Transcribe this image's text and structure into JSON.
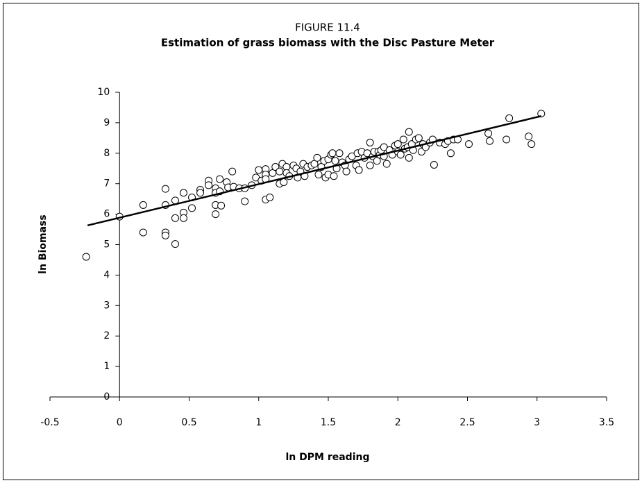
{
  "chart_data": {
    "type": "scatter",
    "title": "FIGURE 11.4",
    "subtitle": "Estimation of grass biomass with the Disc Pasture Meter",
    "x_label": "ln DPM reading",
    "y_label": "ln Biomass",
    "xlim": [
      -0.5,
      3.5
    ],
    "xticks": [
      -0.5,
      0,
      0.5,
      1,
      1.5,
      2,
      2.5,
      3,
      3.5
    ],
    "ylim": [
      0,
      10
    ],
    "yticks": [
      0,
      1,
      2,
      3,
      4,
      5,
      6,
      7,
      8,
      9,
      10
    ],
    "marker_color": "#000000",
    "line_color": "#000000",
    "x": [
      -0.24,
      0,
      0.17,
      0.17,
      0.33,
      0.33,
      0.33,
      0.33,
      0.4,
      0.4,
      0.4,
      0.46,
      0.46,
      0.46,
      0.52,
      0.52,
      0.58,
      0.58,
      0.64,
      0.64,
      0.69,
      0.69,
      0.69,
      0.69,
      0.72,
      0.72,
      0.73,
      0.77,
      0.78,
      0.81,
      0.82,
      0.86,
      0.9,
      0.9,
      0.95,
      0.98,
      1.0,
      1.02,
      1.05,
      1.05,
      1.05,
      1.05,
      1.08,
      1.1,
      1.12,
      1.15,
      1.15,
      1.17,
      1.18,
      1.2,
      1.2,
      1.22,
      1.25,
      1.27,
      1.28,
      1.3,
      1.32,
      1.33,
      1.35,
      1.38,
      1.4,
      1.42,
      1.43,
      1.45,
      1.47,
      1.48,
      1.5,
      1.5,
      1.52,
      1.53,
      1.54,
      1.55,
      1.56,
      1.58,
      1.6,
      1.62,
      1.63,
      1.65,
      1.67,
      1.7,
      1.71,
      1.72,
      1.74,
      1.76,
      1.78,
      1.8,
      1.8,
      1.82,
      1.83,
      1.85,
      1.86,
      1.87,
      1.88,
      1.9,
      1.9,
      1.92,
      1.94,
      1.96,
      1.98,
      2.0,
      2.0,
      2.02,
      2.04,
      2.05,
      2.07,
      2.08,
      2.08,
      2.1,
      2.11,
      2.13,
      2.15,
      2.17,
      2.18,
      2.2,
      2.23,
      2.25,
      2.26,
      2.3,
      2.34,
      2.36,
      2.38,
      2.4,
      2.43,
      2.51,
      2.65,
      2.66,
      2.78,
      2.8,
      2.94,
      2.96,
      3.03
    ],
    "y": [
      4.6,
      5.92,
      6.3,
      5.4,
      6.83,
      6.3,
      5.4,
      5.3,
      6.45,
      5.87,
      5.02,
      6.7,
      6.05,
      5.87,
      6.2,
      6.55,
      6.8,
      6.7,
      7.1,
      6.95,
      6.85,
      6.7,
      6.3,
      6.0,
      7.15,
      6.75,
      6.28,
      7.05,
      6.88,
      7.4,
      6.9,
      6.85,
      6.42,
      6.85,
      6.95,
      7.2,
      7.45,
      7.1,
      7.48,
      7.3,
      7.15,
      6.48,
      6.55,
      7.35,
      7.55,
      7.4,
      7.0,
      7.65,
      7.05,
      7.55,
      7.35,
      7.25,
      7.6,
      7.5,
      7.2,
      7.4,
      7.65,
      7.25,
      7.55,
      7.6,
      7.65,
      7.85,
      7.3,
      7.55,
      7.75,
      7.2,
      7.8,
      7.3,
      7.95,
      8.0,
      7.25,
      7.75,
      7.5,
      8.0,
      7.7,
      7.6,
      7.4,
      7.8,
      7.9,
      7.6,
      8.0,
      7.45,
      8.05,
      7.85,
      8.0,
      8.35,
      7.6,
      7.9,
      8.05,
      7.75,
      8.05,
      7.95,
      8.1,
      8.2,
      7.9,
      7.65,
      8.1,
      7.95,
      8.25,
      8.3,
      8.05,
      7.95,
      8.45,
      8.15,
      8.2,
      8.7,
      7.85,
      8.3,
      8.1,
      8.45,
      8.5,
      8.05,
      8.3,
      8.2,
      8.35,
      8.45,
      7.62,
      8.35,
      8.3,
      8.4,
      8.0,
      8.45,
      8.45,
      8.3,
      8.65,
      8.4,
      8.45,
      9.15,
      8.55,
      8.3,
      9.3
    ],
    "trendline": {
      "x": [
        -0.23,
        3.03
      ],
      "y": [
        5.63,
        9.22
      ]
    }
  }
}
